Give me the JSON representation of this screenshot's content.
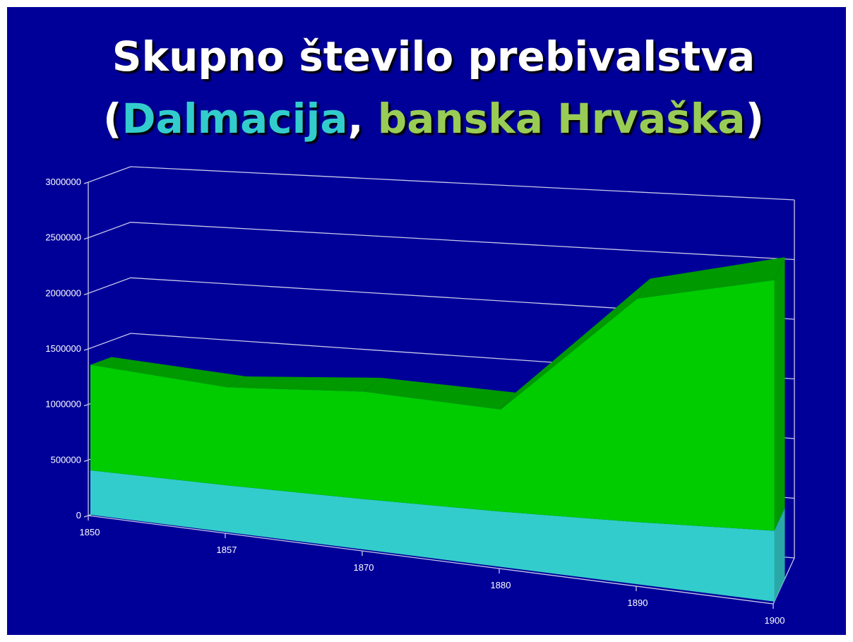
{
  "chart_data": {
    "type": "area3d",
    "title": "Skupno število prebivalstva",
    "subtitle_punctuation": [
      "(",
      ", ",
      ")"
    ],
    "categories": [
      "1850",
      "1857",
      "1870",
      "1880",
      "1890",
      "1900"
    ],
    "series": [
      {
        "name": "Dalmacija",
        "color": "#33cccc",
        "values": [
          400000,
          415000,
          440000,
          476000,
          527000,
          593000
        ]
      },
      {
        "name": "banska Hrvaška",
        "color": "#00cc00",
        "top_color": "#009900",
        "values": [
          950000,
          870000,
          940000,
          880000,
          1900000,
          2100000
        ]
      }
    ],
    "stacked": true,
    "ylim": [
      0,
      3000000
    ],
    "yticks": [
      0,
      500000,
      1000000,
      1500000,
      2000000,
      2500000,
      3000000
    ],
    "grid": true,
    "background": "#000099"
  }
}
